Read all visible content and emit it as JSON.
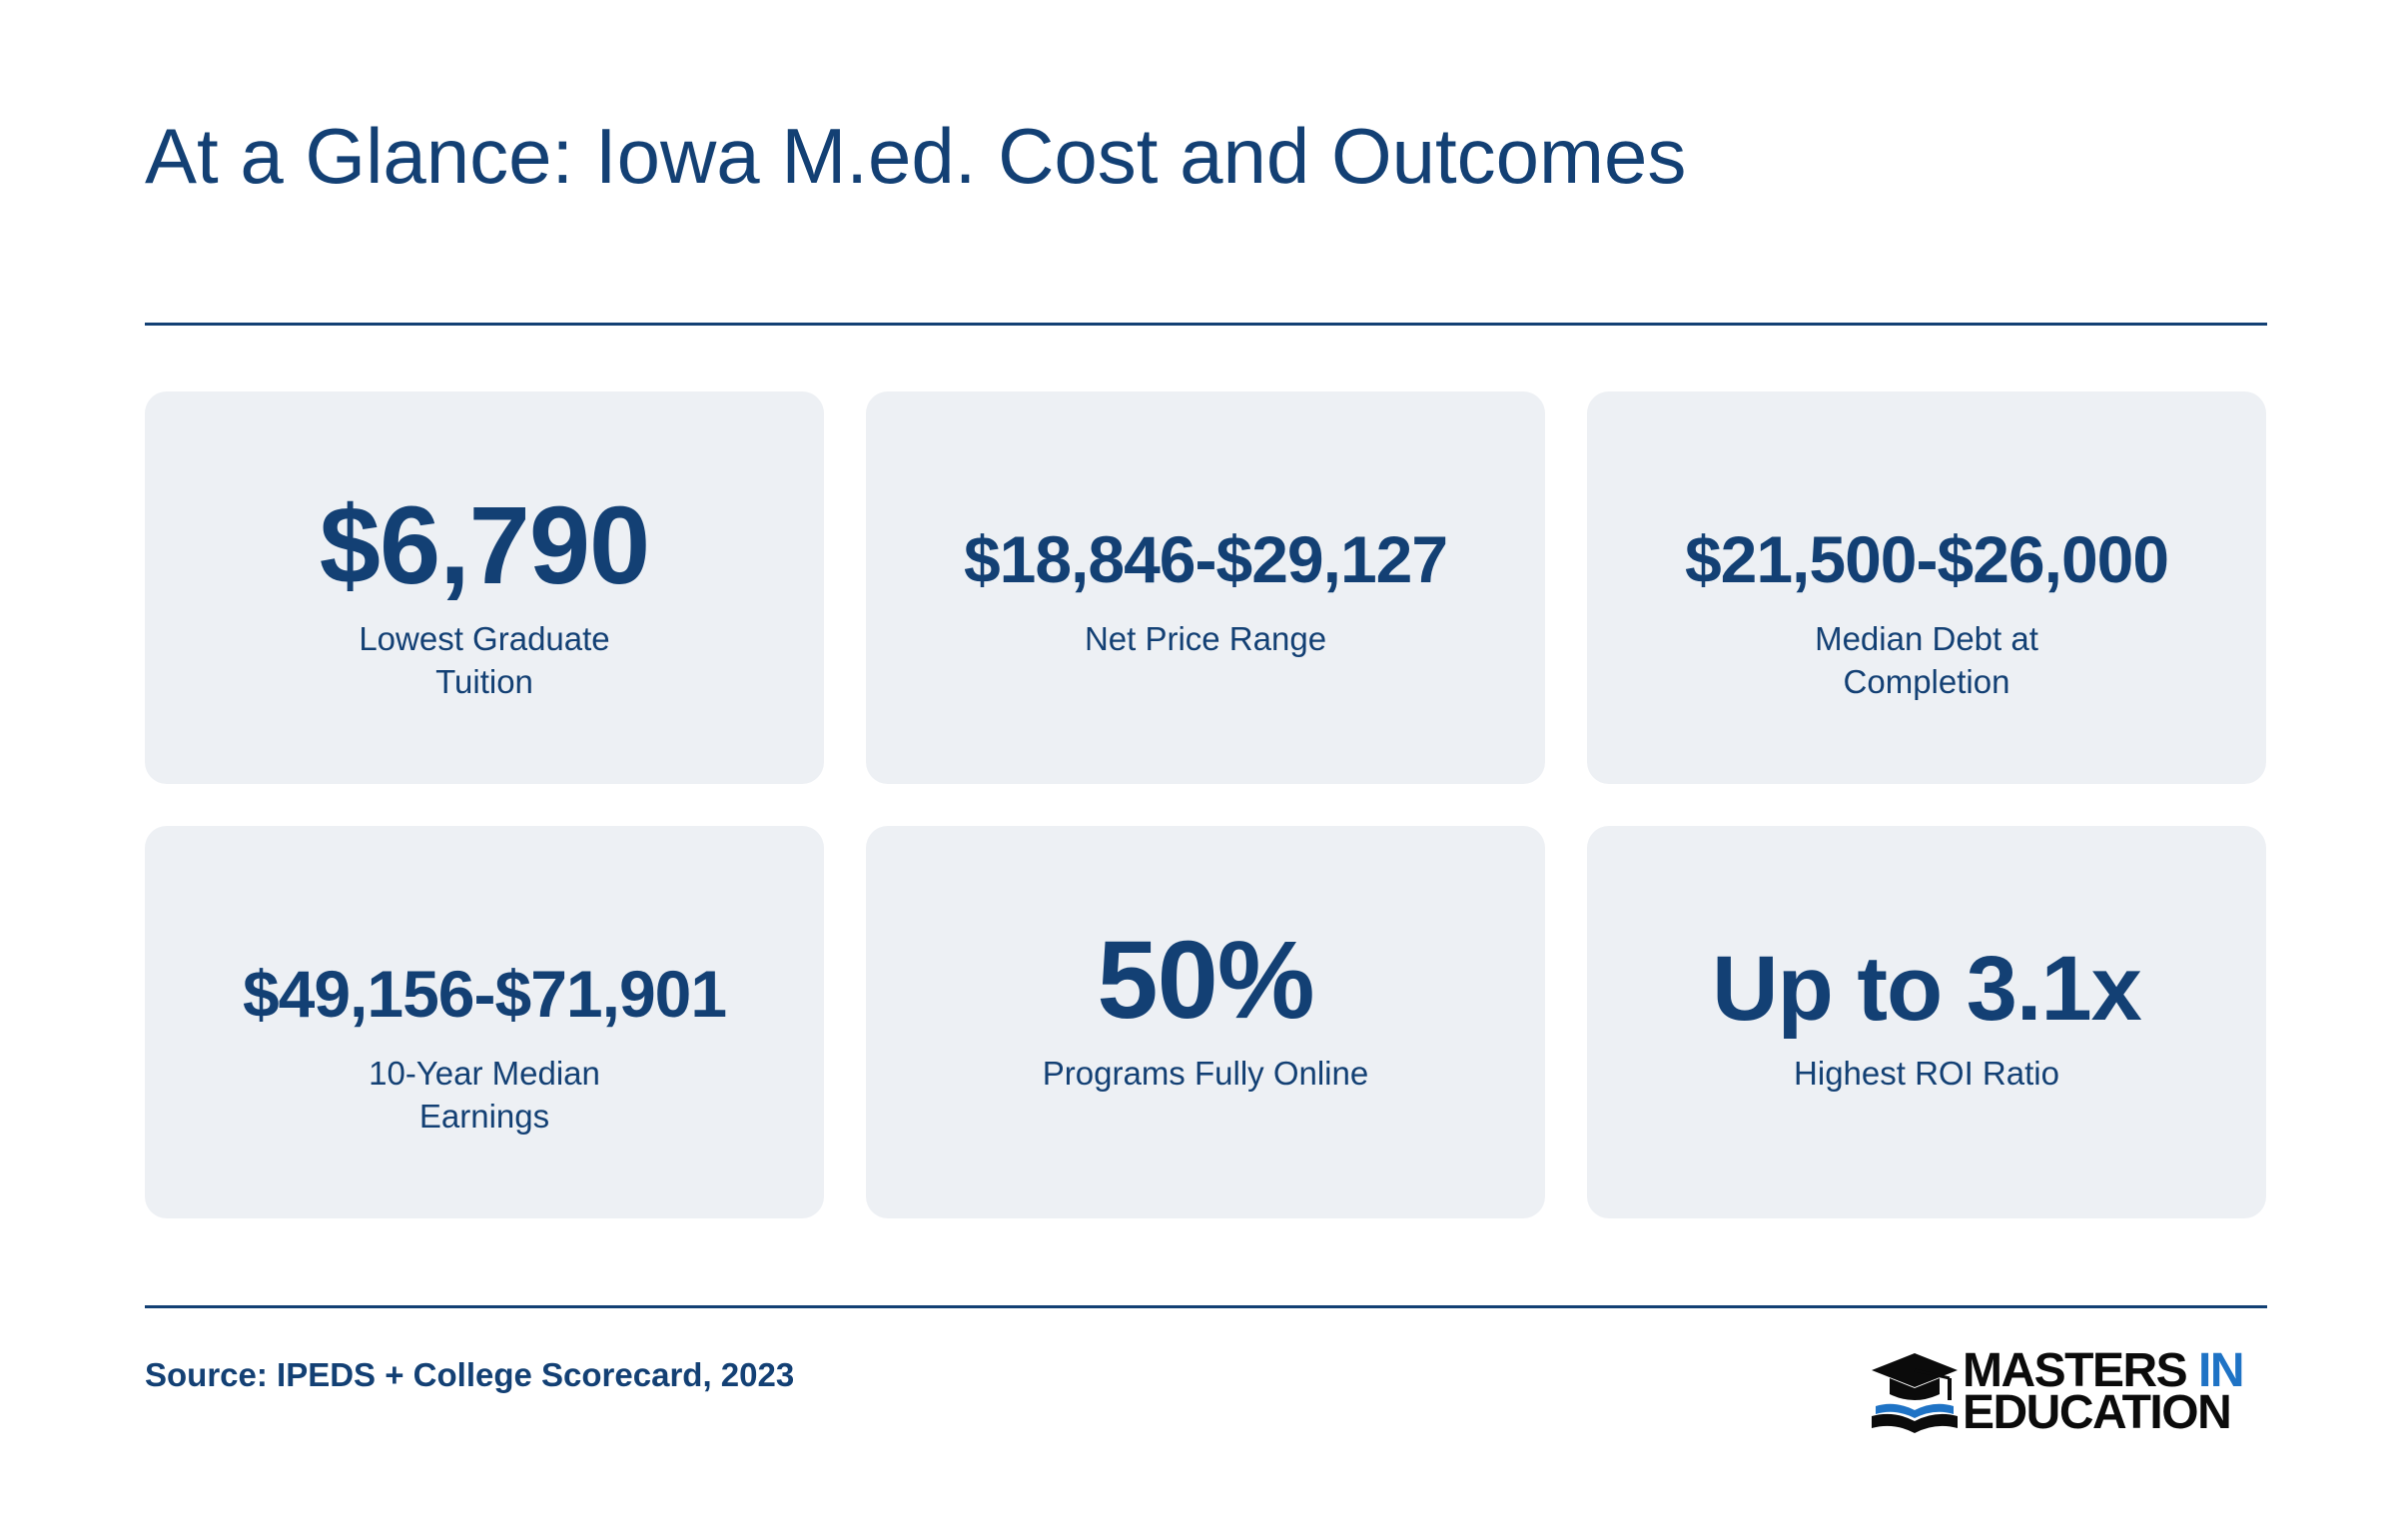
{
  "title": "At a Glance: Iowa M.ed. Cost and Outcomes",
  "cards": [
    {
      "value": "$6,790",
      "label": "Lowest Graduate Tuition"
    },
    {
      "value": "$18,846-$29,127",
      "label": "Net Price Range"
    },
    {
      "value": "$21,500-$26,000",
      "label": "Median Debt at Completion"
    },
    {
      "value": "$49,156-$71,901",
      "label": "10-Year Median Earnings"
    },
    {
      "value": "50%",
      "label": "Programs Fully Online"
    },
    {
      "value": "Up to 3.1x",
      "label": "Highest ROI Ratio"
    }
  ],
  "source": "Source: IPEDS + College Scorecard, 2023",
  "logo": {
    "line1": "MASTERS",
    "line1_accent": "IN",
    "line2": "EDUCATION",
    "icon": "graduation-cap-book-icon"
  },
  "colors": {
    "primary": "#134074",
    "card_bg": "#edf0f4",
    "logo_dark": "#0b0b0b",
    "logo_accent": "#1f73c5"
  }
}
